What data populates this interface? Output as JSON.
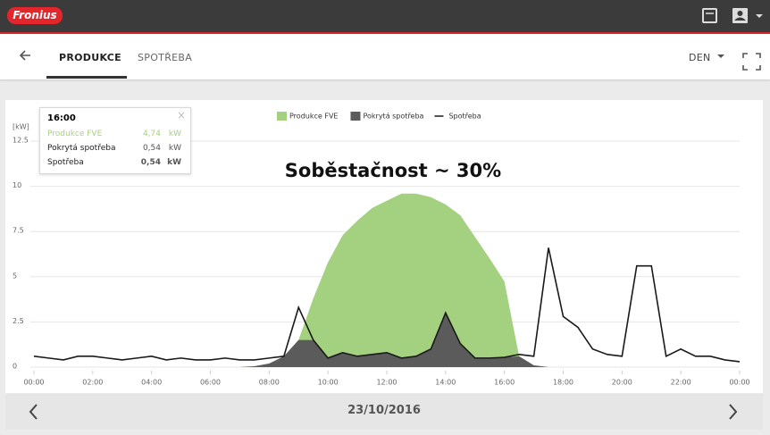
{
  "header": {
    "logo": "Fronius"
  },
  "tabs": [
    "PRODUKCE",
    "SPOTŘEBA"
  ],
  "period": "DEN",
  "date": "23/10/2016",
  "chart_data": {
    "type": "area",
    "y_label": "[kW]",
    "annotation": "Soběstačnost ~ 30%",
    "x": [
      0,
      0.5,
      1,
      1.5,
      2,
      2.5,
      3,
      3.5,
      4,
      4.5,
      5,
      5.5,
      6,
      6.5,
      7,
      7.5,
      8,
      8.5,
      9,
      9.5,
      10,
      10.5,
      11,
      11.5,
      12,
      12.5,
      13,
      13.5,
      14,
      14.5,
      15,
      15.5,
      16,
      16.5,
      17,
      17.5,
      18,
      18.5,
      19,
      19.5,
      20,
      20.5,
      21,
      21.5,
      22,
      22.5,
      23,
      23.5,
      24
    ],
    "series": [
      {
        "name": "Produkce FVE",
        "color": "#a4d17f",
        "type": "area",
        "values": [
          0,
          0,
          0,
          0,
          0,
          0,
          0,
          0,
          0,
          0,
          0,
          0,
          0,
          0,
          0,
          0.05,
          0.2,
          0.6,
          1.5,
          3.8,
          5.8,
          7.3,
          8.1,
          8.8,
          9.2,
          9.6,
          9.6,
          9.4,
          9.0,
          8.4,
          7.2,
          6.0,
          4.74,
          0.6,
          0.1,
          0,
          0,
          0,
          0,
          0,
          0,
          0,
          0,
          0,
          0,
          0,
          0,
          0,
          0
        ]
      },
      {
        "name": "Pokrytá spotřeba",
        "color": "#5b5b5b",
        "type": "area",
        "values": [
          0,
          0,
          0,
          0,
          0,
          0,
          0,
          0,
          0,
          0,
          0,
          0,
          0,
          0,
          0,
          0.05,
          0.2,
          0.6,
          1.5,
          1.5,
          0.5,
          0.8,
          0.6,
          0.7,
          0.8,
          0.5,
          0.6,
          1.0,
          3.0,
          1.3,
          0.5,
          0.5,
          0.54,
          0.6,
          0.1,
          0,
          0,
          0,
          0,
          0,
          0,
          0,
          0,
          0,
          0,
          0,
          0,
          0,
          0
        ]
      },
      {
        "name": "Spotřeba",
        "color": "#1a1a1a",
        "type": "line",
        "values": [
          0.6,
          0.5,
          0.4,
          0.6,
          0.6,
          0.5,
          0.4,
          0.5,
          0.6,
          0.4,
          0.5,
          0.4,
          0.4,
          0.5,
          0.4,
          0.4,
          0.5,
          0.6,
          3.3,
          1.5,
          0.5,
          0.8,
          0.6,
          0.7,
          0.8,
          0.5,
          0.6,
          1.0,
          3.0,
          1.3,
          0.5,
          0.5,
          0.54,
          0.7,
          0.6,
          6.6,
          2.8,
          2.2,
          1.0,
          0.7,
          0.6,
          5.6,
          5.6,
          0.6,
          1.0,
          0.6,
          0.6,
          0.4,
          0.3
        ]
      }
    ],
    "xlim": [
      0,
      24
    ],
    "xticks": [
      {
        "value": 0,
        "label": "00:00"
      },
      {
        "value": 2,
        "label": "02:00"
      },
      {
        "value": 4,
        "label": "04:00"
      },
      {
        "value": 6,
        "label": "06:00"
      },
      {
        "value": 8,
        "label": "08:00"
      },
      {
        "value": 10,
        "label": "10:00"
      },
      {
        "value": 12,
        "label": "12:00"
      },
      {
        "value": 14,
        "label": "14:00"
      },
      {
        "value": 16,
        "label": "16:00"
      },
      {
        "value": 18,
        "label": "18:00"
      },
      {
        "value": 20,
        "label": "20:00"
      },
      {
        "value": 22,
        "label": "22:00"
      },
      {
        "value": 24,
        "label": "00:00"
      }
    ],
    "ylim": [
      0,
      12.5
    ],
    "yticks": [
      0,
      2.5,
      5,
      7.5,
      10,
      12.5
    ],
    "grid": true,
    "tooltip": {
      "time": "16:00",
      "rows": [
        {
          "label": "Produkce FVE",
          "value": "4,74",
          "unit": "kW"
        },
        {
          "label": "Pokrytá spotřeba",
          "value": "0,54",
          "unit": "kW"
        },
        {
          "label": "Spotřeba",
          "value": "0,54",
          "unit": "kW"
        }
      ]
    }
  }
}
